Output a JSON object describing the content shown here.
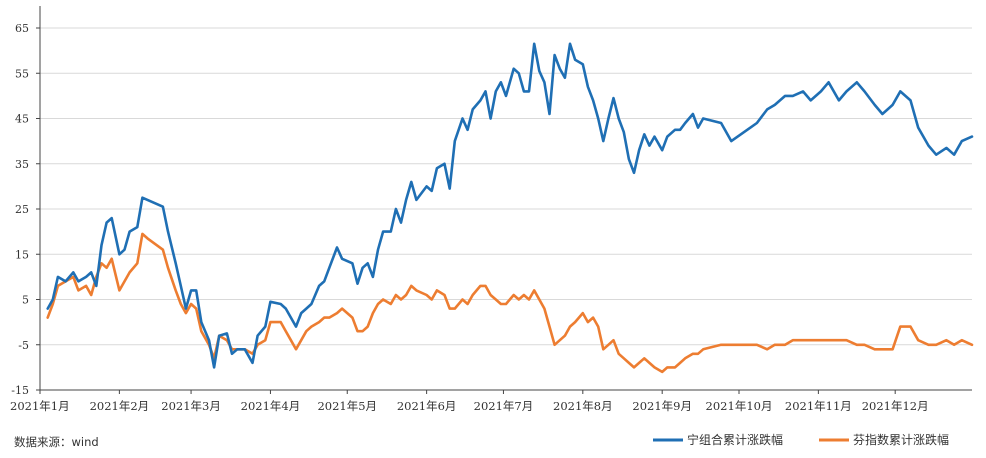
{
  "source": "数据来源：wind",
  "chart_data": {
    "type": "line",
    "title": "",
    "xlabel": "",
    "ylabel": "",
    "ylim": [
      -15,
      65
    ],
    "yticks": [
      -15,
      -5,
      5,
      15,
      25,
      35,
      45,
      55,
      65
    ],
    "ytick_labels": [
      "-15",
      "-5",
      "5",
      "15",
      "25",
      "35",
      "45",
      "55",
      "65"
    ],
    "xlim": [
      "2021-01-01",
      "2021-12-31"
    ],
    "xticks": [
      "2021-01-01",
      "2021-02-01",
      "2021-03-01",
      "2021-04-01",
      "2021-05-01",
      "2021-06-01",
      "2021-07-01",
      "2021-08-01",
      "2021-09-01",
      "2021-10-01",
      "2021-11-01",
      "2021-12-01"
    ],
    "xtick_labels": [
      "2021年1月",
      "2021年2月",
      "2021年3月",
      "2021年4月",
      "2021年5月",
      "2021年6月",
      "2021年7月",
      "2021年8月",
      "2021年9月",
      "2021年10月",
      "2021年11月",
      "2021年12月"
    ],
    "grid": "horizontal",
    "legend_position": "bottom-right",
    "series": [
      {
        "name": "宁组合累计涨跌幅",
        "color": "#1f6fb4",
        "points": [
          [
            "2021-01-04",
            3
          ],
          [
            "2021-01-06",
            5
          ],
          [
            "2021-01-08",
            10
          ],
          [
            "2021-01-11",
            9
          ],
          [
            "2021-01-14",
            11
          ],
          [
            "2021-01-16",
            9
          ],
          [
            "2021-01-19",
            10
          ],
          [
            "2021-01-21",
            11
          ],
          [
            "2021-01-23",
            8
          ],
          [
            "2021-01-25",
            17
          ],
          [
            "2021-01-27",
            22
          ],
          [
            "2021-01-29",
            23
          ],
          [
            "2021-02-01",
            15
          ],
          [
            "2021-02-03",
            16
          ],
          [
            "2021-02-05",
            20
          ],
          [
            "2021-02-08",
            21
          ],
          [
            "2021-02-10",
            27.5
          ],
          [
            "2021-02-12",
            27
          ],
          [
            "2021-02-18",
            25.5
          ],
          [
            "2021-02-20",
            20
          ],
          [
            "2021-02-23",
            13
          ],
          [
            "2021-02-25",
            8
          ],
          [
            "2021-02-27",
            3
          ],
          [
            "2021-03-01",
            7
          ],
          [
            "2021-03-03",
            7
          ],
          [
            "2021-03-05",
            0
          ],
          [
            "2021-03-08",
            -4
          ],
          [
            "2021-03-10",
            -10
          ],
          [
            "2021-03-12",
            -3
          ],
          [
            "2021-03-15",
            -2.5
          ],
          [
            "2021-03-17",
            -7
          ],
          [
            "2021-03-19",
            -6
          ],
          [
            "2021-03-22",
            -6
          ],
          [
            "2021-03-25",
            -9
          ],
          [
            "2021-03-27",
            -3
          ],
          [
            "2021-03-30",
            -1
          ],
          [
            "2021-04-01",
            4.5
          ],
          [
            "2021-04-05",
            4
          ],
          [
            "2021-04-07",
            3
          ],
          [
            "2021-04-09",
            1
          ],
          [
            "2021-04-11",
            -1
          ],
          [
            "2021-04-13",
            2
          ],
          [
            "2021-04-15",
            3
          ],
          [
            "2021-04-17",
            4
          ],
          [
            "2021-04-20",
            8
          ],
          [
            "2021-04-22",
            9
          ],
          [
            "2021-04-24",
            12
          ],
          [
            "2021-04-27",
            16.5
          ],
          [
            "2021-04-29",
            14
          ],
          [
            "2021-05-03",
            13
          ],
          [
            "2021-05-05",
            8.5
          ],
          [
            "2021-05-07",
            12
          ],
          [
            "2021-05-09",
            13
          ],
          [
            "2021-05-11",
            10
          ],
          [
            "2021-05-13",
            16
          ],
          [
            "2021-05-15",
            20
          ],
          [
            "2021-05-18",
            20
          ],
          [
            "2021-05-20",
            25
          ],
          [
            "2021-05-22",
            22
          ],
          [
            "2021-05-24",
            27
          ],
          [
            "2021-05-26",
            31
          ],
          [
            "2021-05-28",
            27
          ],
          [
            "2021-06-01",
            30
          ],
          [
            "2021-06-03",
            29
          ],
          [
            "2021-06-05",
            34
          ],
          [
            "2021-06-08",
            35
          ],
          [
            "2021-06-10",
            29.5
          ],
          [
            "2021-06-12",
            40
          ],
          [
            "2021-06-15",
            45
          ],
          [
            "2021-06-17",
            42.5
          ],
          [
            "2021-06-19",
            47
          ],
          [
            "2021-06-22",
            49
          ],
          [
            "2021-06-24",
            51
          ],
          [
            "2021-06-26",
            45
          ],
          [
            "2021-06-28",
            51
          ],
          [
            "2021-06-30",
            53
          ],
          [
            "2021-07-02",
            50
          ],
          [
            "2021-07-05",
            56
          ],
          [
            "2021-07-07",
            55
          ],
          [
            "2021-07-09",
            51
          ],
          [
            "2021-07-11",
            51
          ],
          [
            "2021-07-13",
            61.5
          ],
          [
            "2021-07-15",
            55.5
          ],
          [
            "2021-07-17",
            53
          ],
          [
            "2021-07-19",
            46
          ],
          [
            "2021-07-21",
            59
          ],
          [
            "2021-07-23",
            56
          ],
          [
            "2021-07-25",
            54
          ],
          [
            "2021-07-27",
            61.5
          ],
          [
            "2021-07-29",
            58
          ],
          [
            "2021-08-01",
            57
          ],
          [
            "2021-08-03",
            52
          ],
          [
            "2021-08-05",
            49
          ],
          [
            "2021-08-07",
            45
          ],
          [
            "2021-08-09",
            40
          ],
          [
            "2021-08-11",
            45
          ],
          [
            "2021-08-13",
            49.5
          ],
          [
            "2021-08-15",
            45
          ],
          [
            "2021-08-17",
            42
          ],
          [
            "2021-08-19",
            36
          ],
          [
            "2021-08-21",
            33
          ],
          [
            "2021-08-23",
            38
          ],
          [
            "2021-08-25",
            41.5
          ],
          [
            "2021-08-27",
            39
          ],
          [
            "2021-08-29",
            41
          ],
          [
            "2021-09-01",
            38
          ],
          [
            "2021-09-03",
            41
          ],
          [
            "2021-09-06",
            42.5
          ],
          [
            "2021-09-08",
            42.5
          ],
          [
            "2021-09-10",
            44
          ],
          [
            "2021-09-13",
            46
          ],
          [
            "2021-09-15",
            43
          ],
          [
            "2021-09-17",
            45
          ],
          [
            "2021-09-24",
            44
          ],
          [
            "2021-09-28",
            40
          ],
          [
            "2021-10-08",
            44
          ],
          [
            "2021-10-12",
            47
          ],
          [
            "2021-10-15",
            48
          ],
          [
            "2021-10-19",
            50
          ],
          [
            "2021-10-22",
            50
          ],
          [
            "2021-10-26",
            51
          ],
          [
            "2021-10-29",
            49
          ],
          [
            "2021-11-02",
            51
          ],
          [
            "2021-11-05",
            53
          ],
          [
            "2021-11-09",
            49
          ],
          [
            "2021-11-12",
            51
          ],
          [
            "2021-11-16",
            53
          ],
          [
            "2021-11-19",
            51
          ],
          [
            "2021-11-23",
            48
          ],
          [
            "2021-11-26",
            46
          ],
          [
            "2021-11-30",
            48
          ],
          [
            "2021-12-03",
            51
          ],
          [
            "2021-12-07",
            49
          ],
          [
            "2021-12-10",
            43
          ],
          [
            "2021-12-14",
            39
          ],
          [
            "2021-12-17",
            37
          ],
          [
            "2021-12-21",
            38.5
          ],
          [
            "2021-12-24",
            37
          ],
          [
            "2021-12-27",
            40
          ],
          [
            "2021-12-31",
            41
          ]
        ]
      },
      {
        "name": "芬指数累计涨跌幅",
        "color": "#ed7d31",
        "points": [
          [
            "2021-01-04",
            1
          ],
          [
            "2021-01-06",
            4
          ],
          [
            "2021-01-08",
            8
          ],
          [
            "2021-01-11",
            9
          ],
          [
            "2021-01-14",
            10
          ],
          [
            "2021-01-16",
            7
          ],
          [
            "2021-01-19",
            8
          ],
          [
            "2021-01-21",
            6
          ],
          [
            "2021-01-23",
            10
          ],
          [
            "2021-01-25",
            13
          ],
          [
            "2021-01-27",
            12
          ],
          [
            "2021-01-29",
            14
          ],
          [
            "2021-02-01",
            7
          ],
          [
            "2021-02-03",
            9
          ],
          [
            "2021-02-05",
            11
          ],
          [
            "2021-02-08",
            13
          ],
          [
            "2021-02-10",
            19.5
          ],
          [
            "2021-02-12",
            18.5
          ],
          [
            "2021-02-18",
            16
          ],
          [
            "2021-02-20",
            12
          ],
          [
            "2021-02-23",
            7
          ],
          [
            "2021-02-25",
            4
          ],
          [
            "2021-02-27",
            2
          ],
          [
            "2021-03-01",
            4
          ],
          [
            "2021-03-03",
            3
          ],
          [
            "2021-03-05",
            -2
          ],
          [
            "2021-03-08",
            -5
          ],
          [
            "2021-03-10",
            -8
          ],
          [
            "2021-03-12",
            -3
          ],
          [
            "2021-03-15",
            -4
          ],
          [
            "2021-03-17",
            -6
          ],
          [
            "2021-03-19",
            -6
          ],
          [
            "2021-03-22",
            -6
          ],
          [
            "2021-03-25",
            -7
          ],
          [
            "2021-03-27",
            -5
          ],
          [
            "2021-03-30",
            -4
          ],
          [
            "2021-04-01",
            0
          ],
          [
            "2021-04-05",
            0
          ],
          [
            "2021-04-07",
            -2
          ],
          [
            "2021-04-09",
            -4
          ],
          [
            "2021-04-11",
            -6
          ],
          [
            "2021-04-13",
            -4
          ],
          [
            "2021-04-15",
            -2
          ],
          [
            "2021-04-17",
            -1
          ],
          [
            "2021-04-20",
            0
          ],
          [
            "2021-04-22",
            1
          ],
          [
            "2021-04-24",
            1
          ],
          [
            "2021-04-27",
            2
          ],
          [
            "2021-04-29",
            3
          ],
          [
            "2021-05-03",
            1
          ],
          [
            "2021-05-05",
            -2
          ],
          [
            "2021-05-07",
            -2
          ],
          [
            "2021-05-09",
            -1
          ],
          [
            "2021-05-11",
            2
          ],
          [
            "2021-05-13",
            4
          ],
          [
            "2021-05-15",
            5
          ],
          [
            "2021-05-18",
            4
          ],
          [
            "2021-05-20",
            6
          ],
          [
            "2021-05-22",
            5
          ],
          [
            "2021-05-24",
            6
          ],
          [
            "2021-05-26",
            8
          ],
          [
            "2021-05-28",
            7
          ],
          [
            "2021-06-01",
            6
          ],
          [
            "2021-06-03",
            5
          ],
          [
            "2021-06-05",
            7
          ],
          [
            "2021-06-08",
            6
          ],
          [
            "2021-06-10",
            3
          ],
          [
            "2021-06-12",
            3
          ],
          [
            "2021-06-15",
            5
          ],
          [
            "2021-06-17",
            4
          ],
          [
            "2021-06-19",
            6
          ],
          [
            "2021-06-22",
            8
          ],
          [
            "2021-06-24",
            8
          ],
          [
            "2021-06-26",
            6
          ],
          [
            "2021-06-28",
            5
          ],
          [
            "2021-06-30",
            4
          ],
          [
            "2021-07-02",
            4
          ],
          [
            "2021-07-05",
            6
          ],
          [
            "2021-07-07",
            5
          ],
          [
            "2021-07-09",
            6
          ],
          [
            "2021-07-11",
            5
          ],
          [
            "2021-07-13",
            7
          ],
          [
            "2021-07-15",
            5
          ],
          [
            "2021-07-17",
            3
          ],
          [
            "2021-07-19",
            -1
          ],
          [
            "2021-07-21",
            -5
          ],
          [
            "2021-07-23",
            -4
          ],
          [
            "2021-07-25",
            -3
          ],
          [
            "2021-07-27",
            -1
          ],
          [
            "2021-07-29",
            0
          ],
          [
            "2021-08-01",
            2
          ],
          [
            "2021-08-03",
            0
          ],
          [
            "2021-08-05",
            1
          ],
          [
            "2021-08-07",
            -1
          ],
          [
            "2021-08-09",
            -6
          ],
          [
            "2021-08-11",
            -5
          ],
          [
            "2021-08-13",
            -4
          ],
          [
            "2021-08-15",
            -7
          ],
          [
            "2021-08-17",
            -8
          ],
          [
            "2021-08-19",
            -9
          ],
          [
            "2021-08-21",
            -10
          ],
          [
            "2021-08-23",
            -9
          ],
          [
            "2021-08-25",
            -8
          ],
          [
            "2021-08-27",
            -9
          ],
          [
            "2021-08-29",
            -10
          ],
          [
            "2021-09-01",
            -11
          ],
          [
            "2021-09-03",
            -10
          ],
          [
            "2021-09-06",
            -10
          ],
          [
            "2021-09-08",
            -9
          ],
          [
            "2021-09-10",
            -8
          ],
          [
            "2021-09-13",
            -7
          ],
          [
            "2021-09-15",
            -7
          ],
          [
            "2021-09-17",
            -6
          ],
          [
            "2021-09-24",
            -5
          ],
          [
            "2021-09-28",
            -5
          ],
          [
            "2021-10-08",
            -5
          ],
          [
            "2021-10-12",
            -6
          ],
          [
            "2021-10-15",
            -5
          ],
          [
            "2021-10-19",
            -5
          ],
          [
            "2021-10-22",
            -4
          ],
          [
            "2021-10-26",
            -4
          ],
          [
            "2021-10-29",
            -4
          ],
          [
            "2021-11-02",
            -4
          ],
          [
            "2021-11-05",
            -4
          ],
          [
            "2021-11-09",
            -4
          ],
          [
            "2021-11-12",
            -4
          ],
          [
            "2021-11-16",
            -5
          ],
          [
            "2021-11-19",
            -5
          ],
          [
            "2021-11-23",
            -6
          ],
          [
            "2021-11-26",
            -6
          ],
          [
            "2021-11-30",
            -6
          ],
          [
            "2021-12-03",
            -1
          ],
          [
            "2021-12-07",
            -1
          ],
          [
            "2021-12-10",
            -4
          ],
          [
            "2021-12-14",
            -5
          ],
          [
            "2021-12-17",
            -5
          ],
          [
            "2021-12-21",
            -4
          ],
          [
            "2021-12-24",
            -5
          ],
          [
            "2021-12-27",
            -4
          ],
          [
            "2021-12-31",
            -5
          ]
        ]
      }
    ]
  }
}
